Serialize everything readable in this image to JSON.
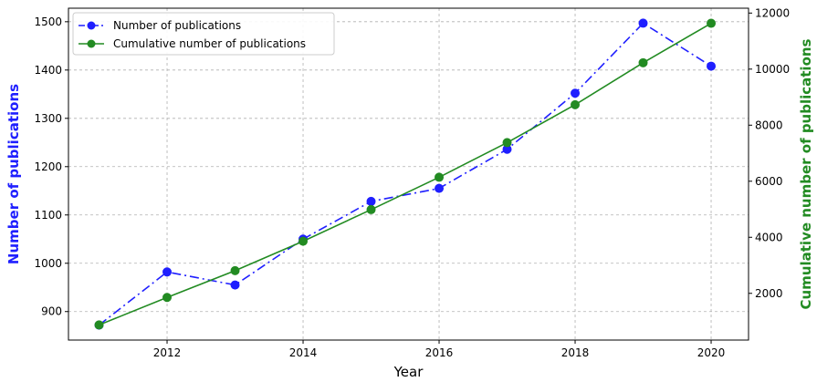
{
  "chart_data": {
    "type": "line",
    "x": [
      2011,
      2012,
      2013,
      2014,
      2015,
      2016,
      2017,
      2018,
      2019,
      2020
    ],
    "xlabel": "Year",
    "xticks": [
      "2012",
      "2014",
      "2016",
      "2018",
      "2020"
    ],
    "xlim": [
      2010.55,
      2020.55
    ],
    "grid": true,
    "legend_position": "top-left",
    "series": [
      {
        "name": "Number of publications",
        "axis": "left",
        "color": "#1f1fff",
        "line_style": "dash-dot",
        "marker": "circle",
        "values": [
          872,
          982,
          955,
          1050,
          1128,
          1155,
          1236,
          1352,
          1497,
          1408
        ]
      },
      {
        "name": "Cumulative number of publications",
        "axis": "right",
        "color": "#228b22",
        "line_style": "solid",
        "marker": "circle",
        "values": [
          872,
          1854,
          2809,
          3859,
          4987,
          6142,
          7378,
          8730,
          10227,
          11635
        ]
      }
    ],
    "left_axis": {
      "label": "Number of publications",
      "color": "#1f1fff",
      "ylim": [
        841,
        1528
      ],
      "ticks": [
        "900",
        "1000",
        "1100",
        "1200",
        "1300",
        "1400",
        "1500"
      ]
    },
    "right_axis": {
      "label": "Cumulative number of publications",
      "color": "#228b22",
      "ylim": [
        333,
        12173
      ],
      "ticks": [
        "2000",
        "4000",
        "6000",
        "8000",
        "10000",
        "12000"
      ]
    }
  }
}
